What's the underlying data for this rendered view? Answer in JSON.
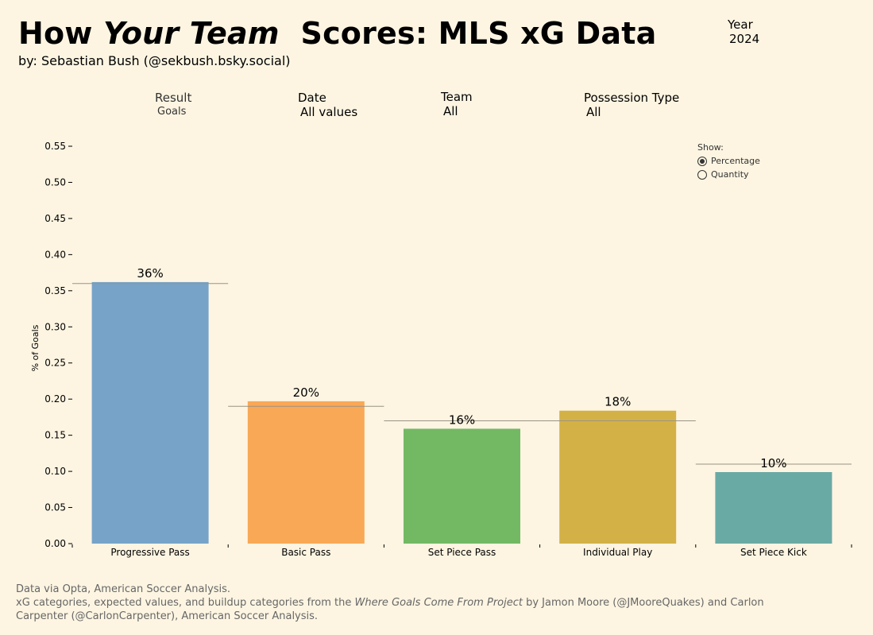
{
  "header": {
    "title_part1": "How ",
    "title_italic": "Your Team",
    "title_part2": "  Scores: MLS xG Data",
    "byline": "by: Sebastian Bush (@sekbush.bsky.social)"
  },
  "year_filter": {
    "label": "Year",
    "value": "2024"
  },
  "filters": [
    {
      "label": "Result",
      "value": "Goals"
    },
    {
      "label": "Date",
      "value": "All values"
    },
    {
      "label": "Team",
      "value": "All"
    },
    {
      "label": "Possession Type",
      "value": "All"
    }
  ],
  "show_toggle": {
    "label": "Show:",
    "options": [
      {
        "label": "Percentage",
        "selected": true
      },
      {
        "label": "Quantity",
        "selected": false
      }
    ]
  },
  "chart_data": {
    "type": "bar",
    "categories": [
      "Progressive Pass",
      "Basic Pass",
      "Set Piece Pass",
      "Individual Play",
      "Set Piece Kick"
    ],
    "values": [
      0.362,
      0.197,
      0.159,
      0.184,
      0.099
    ],
    "data_labels": [
      "36%",
      "20%",
      "16%",
      "18%",
      "10%"
    ],
    "reference_values": [
      0.36,
      0.19,
      0.17,
      0.17,
      0.11
    ],
    "colors": [
      "#77a3c8",
      "#f9a856",
      "#73b964",
      "#d4b147",
      "#6aaaa5"
    ],
    "reference_line_color": "#9a9384",
    "ylabel": "% of Goals",
    "xlabel": "",
    "ylim": [
      0,
      0.55
    ],
    "yticks": [
      "0.00",
      "0.05",
      "0.10",
      "0.15",
      "0.20",
      "0.25",
      "0.30",
      "0.35",
      "0.40",
      "0.45",
      "0.50",
      "0.55"
    ],
    "grid": false
  },
  "footer": {
    "line1": "Data via Opta, American Soccer Analysis.",
    "line2_pre": "xG categories, expected values, and buildup categories from the ",
    "line2_italic": "Where Goals Come From Project",
    "line2_post": " by Jamon Moore (@JMooreQuakes) and Carlon",
    "line3": "Carpenter (@CarlonCarpenter), American Soccer Analysis."
  }
}
